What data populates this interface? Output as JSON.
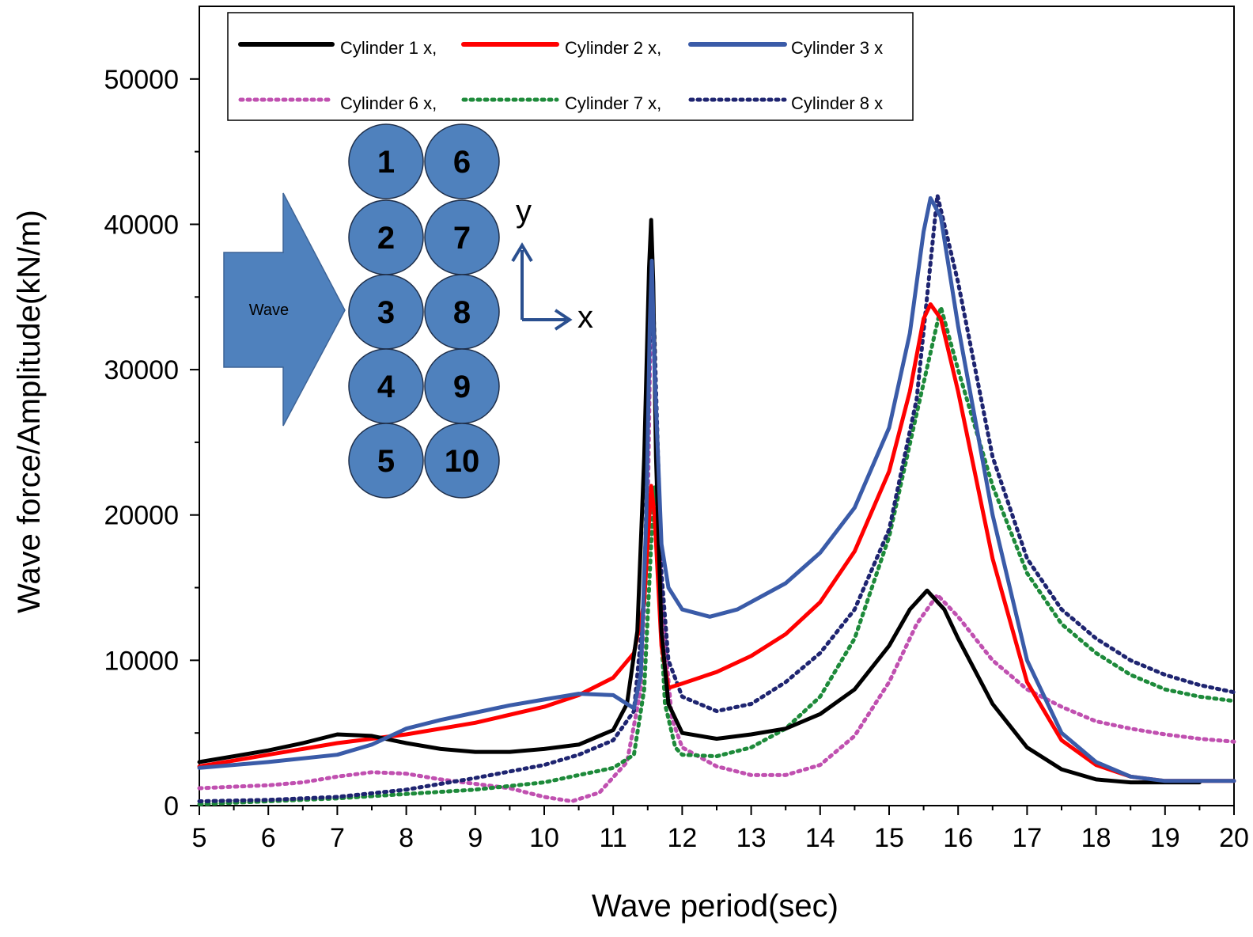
{
  "chart_data": {
    "type": "line",
    "title": "",
    "xlabel": "Wave period(sec)",
    "ylabel": "Wave force/Amplitude(kN/m)",
    "xlim": [
      5,
      20
    ],
    "ylim": [
      0,
      55000
    ],
    "xticks": [
      "5",
      "6",
      "7",
      "8",
      "9",
      "10",
      "11",
      "12",
      "13",
      "14",
      "15",
      "16",
      "17",
      "18",
      "19",
      "20"
    ],
    "yticks": [
      "0",
      "10000",
      "20000",
      "30000",
      "40000",
      "50000"
    ],
    "legend_position": "top",
    "grid": false,
    "series": [
      {
        "name": "Cylinder 1 x",
        "legend_label": "Cylinder 1 x,",
        "color": "#000000",
        "style": "solid",
        "points": [
          [
            5,
            3000
          ],
          [
            5.5,
            3400
          ],
          [
            6,
            3800
          ],
          [
            6.5,
            4300
          ],
          [
            7,
            4900
          ],
          [
            7.5,
            4800
          ],
          [
            8,
            4300
          ],
          [
            8.5,
            3900
          ],
          [
            9,
            3700
          ],
          [
            9.5,
            3700
          ],
          [
            10,
            3900
          ],
          [
            10.5,
            4200
          ],
          [
            11,
            5200
          ],
          [
            11.2,
            7000
          ],
          [
            11.35,
            12000
          ],
          [
            11.45,
            24000
          ],
          [
            11.52,
            37000
          ],
          [
            11.55,
            40300
          ],
          [
            11.58,
            36000
          ],
          [
            11.62,
            24000
          ],
          [
            11.7,
            12000
          ],
          [
            11.8,
            7000
          ],
          [
            12,
            5000
          ],
          [
            12.5,
            4600
          ],
          [
            13,
            4900
          ],
          [
            13.5,
            5300
          ],
          [
            14,
            6300
          ],
          [
            14.5,
            8000
          ],
          [
            15,
            11000
          ],
          [
            15.3,
            13500
          ],
          [
            15.55,
            14800
          ],
          [
            15.8,
            13500
          ],
          [
            16,
            11500
          ],
          [
            16.5,
            7000
          ],
          [
            17,
            4000
          ],
          [
            17.5,
            2500
          ],
          [
            18,
            1800
          ],
          [
            18.5,
            1600
          ],
          [
            19,
            1600
          ],
          [
            19.5,
            1600
          ]
        ]
      },
      {
        "name": "Cylinder 2 x",
        "legend_label": "Cylinder 2 x,",
        "color": "#ff0000",
        "style": "solid",
        "points": [
          [
            5,
            2700
          ],
          [
            6,
            3500
          ],
          [
            7,
            4300
          ],
          [
            8,
            4900
          ],
          [
            9,
            5700
          ],
          [
            10,
            6800
          ],
          [
            10.5,
            7600
          ],
          [
            11,
            8800
          ],
          [
            11.3,
            10500
          ],
          [
            11.45,
            14000
          ],
          [
            11.55,
            22000
          ],
          [
            11.6,
            20000
          ],
          [
            11.7,
            11000
          ],
          [
            11.8,
            8100
          ],
          [
            12,
            8400
          ],
          [
            12.5,
            9200
          ],
          [
            13,
            10300
          ],
          [
            13.5,
            11800
          ],
          [
            14,
            14000
          ],
          [
            14.5,
            17500
          ],
          [
            15,
            23000
          ],
          [
            15.3,
            28500
          ],
          [
            15.5,
            33500
          ],
          [
            15.6,
            34500
          ],
          [
            15.75,
            33500
          ],
          [
            16,
            28500
          ],
          [
            16.5,
            17000
          ],
          [
            17,
            8500
          ],
          [
            17.5,
            4500
          ],
          [
            18,
            2800
          ],
          [
            18.5,
            2000
          ],
          [
            19,
            1700
          ],
          [
            19.5,
            1700
          ],
          [
            20,
            1700
          ]
        ]
      },
      {
        "name": "Cylinder 3 x",
        "legend_label": "Cylinder 3 x",
        "color": "#3a5ba8",
        "style": "solid",
        "points": [
          [
            5,
            2600
          ],
          [
            6,
            3000
          ],
          [
            7,
            3500
          ],
          [
            7.5,
            4200
          ],
          [
            8,
            5300
          ],
          [
            8.5,
            5900
          ],
          [
            9,
            6400
          ],
          [
            9.5,
            6900
          ],
          [
            10,
            7300
          ],
          [
            10.5,
            7700
          ],
          [
            11,
            7600
          ],
          [
            11.3,
            6700
          ],
          [
            11.4,
            9000
          ],
          [
            11.48,
            20000
          ],
          [
            11.53,
            33000
          ],
          [
            11.56,
            37500
          ],
          [
            11.6,
            30000
          ],
          [
            11.7,
            18000
          ],
          [
            11.8,
            15000
          ],
          [
            12,
            13500
          ],
          [
            12.4,
            13000
          ],
          [
            12.8,
            13500
          ],
          [
            13.5,
            15300
          ],
          [
            14,
            17400
          ],
          [
            14.5,
            20500
          ],
          [
            15,
            26000
          ],
          [
            15.3,
            32500
          ],
          [
            15.5,
            39500
          ],
          [
            15.6,
            41800
          ],
          [
            15.75,
            40500
          ],
          [
            16,
            33000
          ],
          [
            16.5,
            20000
          ],
          [
            17,
            10000
          ],
          [
            17.5,
            5000
          ],
          [
            18,
            3000
          ],
          [
            18.5,
            2000
          ],
          [
            19,
            1700
          ],
          [
            19.5,
            1700
          ],
          [
            20,
            1700
          ]
        ]
      },
      {
        "name": "Cylinder 6 x",
        "legend_label": "Cylinder 6 x,",
        "color": "#c050b0",
        "style": "dotted",
        "points": [
          [
            5,
            1200
          ],
          [
            5.5,
            1300
          ],
          [
            6,
            1400
          ],
          [
            6.5,
            1600
          ],
          [
            7,
            2000
          ],
          [
            7.5,
            2300
          ],
          [
            8,
            2200
          ],
          [
            8.5,
            1800
          ],
          [
            9,
            1500
          ],
          [
            9.5,
            1200
          ],
          [
            10,
            600
          ],
          [
            10.4,
            300
          ],
          [
            10.8,
            900
          ],
          [
            11.2,
            3000
          ],
          [
            11.4,
            8000
          ],
          [
            11.5,
            20000
          ],
          [
            11.55,
            36000
          ],
          [
            11.6,
            30000
          ],
          [
            11.7,
            14000
          ],
          [
            11.85,
            6000
          ],
          [
            12,
            4000
          ],
          [
            12.5,
            2700
          ],
          [
            13,
            2100
          ],
          [
            13.5,
            2100
          ],
          [
            14,
            2800
          ],
          [
            14.5,
            4800
          ],
          [
            15,
            8500
          ],
          [
            15.4,
            12500
          ],
          [
            15.7,
            14500
          ],
          [
            16,
            13000
          ],
          [
            16.5,
            10000
          ],
          [
            17,
            8000
          ],
          [
            17.5,
            6800
          ],
          [
            18,
            5800
          ],
          [
            18.5,
            5300
          ],
          [
            19,
            4900
          ],
          [
            19.5,
            4600
          ],
          [
            20,
            4400
          ]
        ]
      },
      {
        "name": "Cylinder 7 x",
        "legend_label": "Cylinder 7 x,",
        "color": "#1d8a3a",
        "style": "dotted",
        "points": [
          [
            5,
            100
          ],
          [
            6,
            300
          ],
          [
            7,
            500
          ],
          [
            8,
            800
          ],
          [
            9,
            1100
          ],
          [
            10,
            1600
          ],
          [
            10.5,
            2100
          ],
          [
            11,
            2600
          ],
          [
            11.3,
            3500
          ],
          [
            11.45,
            8000
          ],
          [
            11.55,
            18000
          ],
          [
            11.6,
            22000
          ],
          [
            11.65,
            16000
          ],
          [
            11.75,
            7000
          ],
          [
            11.9,
            4000
          ],
          [
            12,
            3500
          ],
          [
            12.5,
            3400
          ],
          [
            13,
            4000
          ],
          [
            13.5,
            5300
          ],
          [
            14,
            7500
          ],
          [
            14.5,
            11500
          ],
          [
            15,
            18500
          ],
          [
            15.4,
            27000
          ],
          [
            15.75,
            34300
          ],
          [
            16,
            30000
          ],
          [
            16.5,
            22000
          ],
          [
            17,
            16000
          ],
          [
            17.5,
            12500
          ],
          [
            18,
            10500
          ],
          [
            18.5,
            9000
          ],
          [
            19,
            8000
          ],
          [
            19.5,
            7500
          ],
          [
            20,
            7200
          ]
        ]
      },
      {
        "name": "Cylinder 8 x",
        "legend_label": "Cylinder 8 x",
        "color": "#1e2470",
        "style": "dotted",
        "points": [
          [
            5,
            300
          ],
          [
            6,
            400
          ],
          [
            7,
            600
          ],
          [
            8,
            1100
          ],
          [
            9,
            1900
          ],
          [
            10,
            2800
          ],
          [
            10.5,
            3500
          ],
          [
            11,
            4500
          ],
          [
            11.3,
            6500
          ],
          [
            11.45,
            14000
          ],
          [
            11.52,
            30000
          ],
          [
            11.56,
            37000
          ],
          [
            11.6,
            32000
          ],
          [
            11.7,
            16000
          ],
          [
            11.8,
            10000
          ],
          [
            12,
            7500
          ],
          [
            12.5,
            6500
          ],
          [
            13,
            7000
          ],
          [
            13.5,
            8500
          ],
          [
            14,
            10500
          ],
          [
            14.5,
            13500
          ],
          [
            15,
            19000
          ],
          [
            15.4,
            28000
          ],
          [
            15.7,
            42000
          ],
          [
            16,
            36000
          ],
          [
            16.5,
            24000
          ],
          [
            17,
            17000
          ],
          [
            17.5,
            13500
          ],
          [
            18,
            11500
          ],
          [
            18.5,
            10000
          ],
          [
            19,
            9000
          ],
          [
            19.5,
            8300
          ],
          [
            20,
            7800
          ]
        ]
      }
    ]
  },
  "inset": {
    "wave_label": "Wave",
    "cylinder_numbers": [
      "1",
      "6",
      "2",
      "7",
      "3",
      "8",
      "4",
      "9",
      "5",
      "10"
    ],
    "cylinder_color": "#4f81bd",
    "axis_y_label": "y",
    "axis_x_label": "x",
    "arrow_color": "#2a4f8f"
  }
}
